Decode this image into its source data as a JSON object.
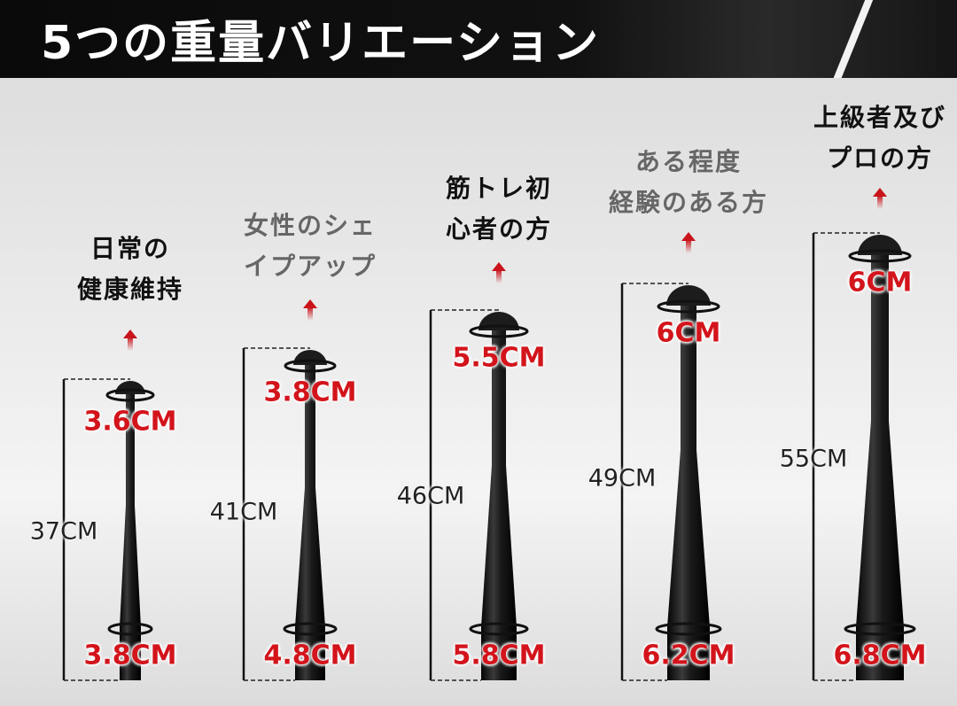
{
  "header": {
    "title": "5つの重量バリエーション"
  },
  "colors": {
    "accent": "#d3141b",
    "header_bg": "#111111"
  },
  "products": [
    {
      "label_lines": [
        "日常の",
        "健康維持"
      ],
      "label_tone": "dark",
      "length": "37CM",
      "top_diameter": "3.6CM",
      "bottom_diameter": "3.8CM"
    },
    {
      "label_lines": [
        "女性のシェ",
        "イプアップ"
      ],
      "label_tone": "gray",
      "length": "41CM",
      "top_diameter": "3.8CM",
      "bottom_diameter": "4.8CM"
    },
    {
      "label_lines": [
        "筋トレ初",
        "心者の方"
      ],
      "label_tone": "dark",
      "length": "46CM",
      "top_diameter": "5.5CM",
      "bottom_diameter": "5.8CM"
    },
    {
      "label_lines": [
        "ある程度",
        "経験のある方"
      ],
      "label_tone": "gray",
      "length": "49CM",
      "top_diameter": "6CM",
      "bottom_diameter": "6.2CM"
    },
    {
      "label_lines": [
        "上級者及び",
        "プロの方"
      ],
      "label_tone": "dark",
      "length": "55CM",
      "top_diameter": "6CM",
      "bottom_diameter": "6.8CM"
    }
  ]
}
